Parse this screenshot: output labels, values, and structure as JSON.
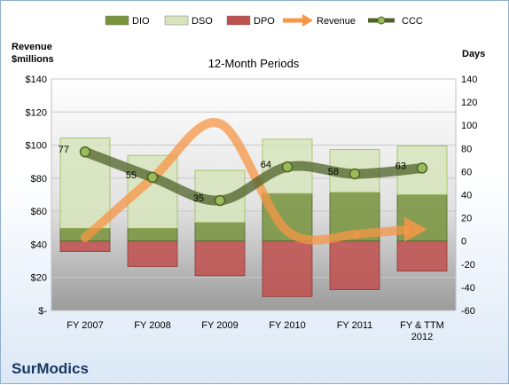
{
  "chart_data": {
    "type": "bar",
    "title": "12-Month Periods",
    "left_axis_label_line1": "Revenue",
    "left_axis_label_line2": "$millions",
    "right_axis_label": "Days",
    "company": "SurModics",
    "categories": [
      [
        "FY 2007"
      ],
      [
        "FY 2008"
      ],
      [
        "FY 2009"
      ],
      [
        "FY 2010"
      ],
      [
        "FY 2011"
      ],
      [
        "FY & TTM",
        "2012"
      ]
    ],
    "left_ticks": [
      "$140",
      "$120",
      "$100",
      "$80",
      "$60",
      "$40",
      "$20",
      "$-"
    ],
    "left_tick_values": [
      140,
      120,
      100,
      80,
      60,
      40,
      20,
      0
    ],
    "right_ticks": [
      "140",
      "120",
      "100",
      "80",
      "60",
      "40",
      "20",
      "0",
      "-20",
      "-40",
      "-60"
    ],
    "right_tick_values": [
      140,
      120,
      100,
      80,
      60,
      40,
      20,
      0,
      -20,
      -40,
      -60
    ],
    "left_ylim": [
      0,
      140
    ],
    "right_ylim": [
      -60,
      140
    ],
    "legend_position": "top",
    "series": [
      {
        "name": "DIO",
        "kind": "bar",
        "color": "#77933c",
        "values": [
          11,
          11,
          16,
          41,
          42,
          40
        ]
      },
      {
        "name": "DSO",
        "kind": "bar",
        "color": "#d7e4bd",
        "values": [
          78,
          63,
          45,
          47,
          37,
          42
        ]
      },
      {
        "name": "DPO",
        "kind": "bar",
        "color": "#c0504d",
        "values": [
          -9,
          -22,
          -30,
          -48,
          -42,
          -26
        ]
      },
      {
        "name": "Revenue",
        "kind": "line",
        "color": "#f79646",
        "values": [
          44,
          80,
          113,
          48,
          46,
          49
        ]
      },
      {
        "name": "CCC",
        "kind": "line",
        "color": "#4f6228",
        "values": [
          77,
          55,
          35,
          64,
          58,
          63
        ]
      }
    ],
    "ccc_labels": [
      "77",
      "55",
      "35",
      "64",
      "58",
      "63"
    ]
  }
}
